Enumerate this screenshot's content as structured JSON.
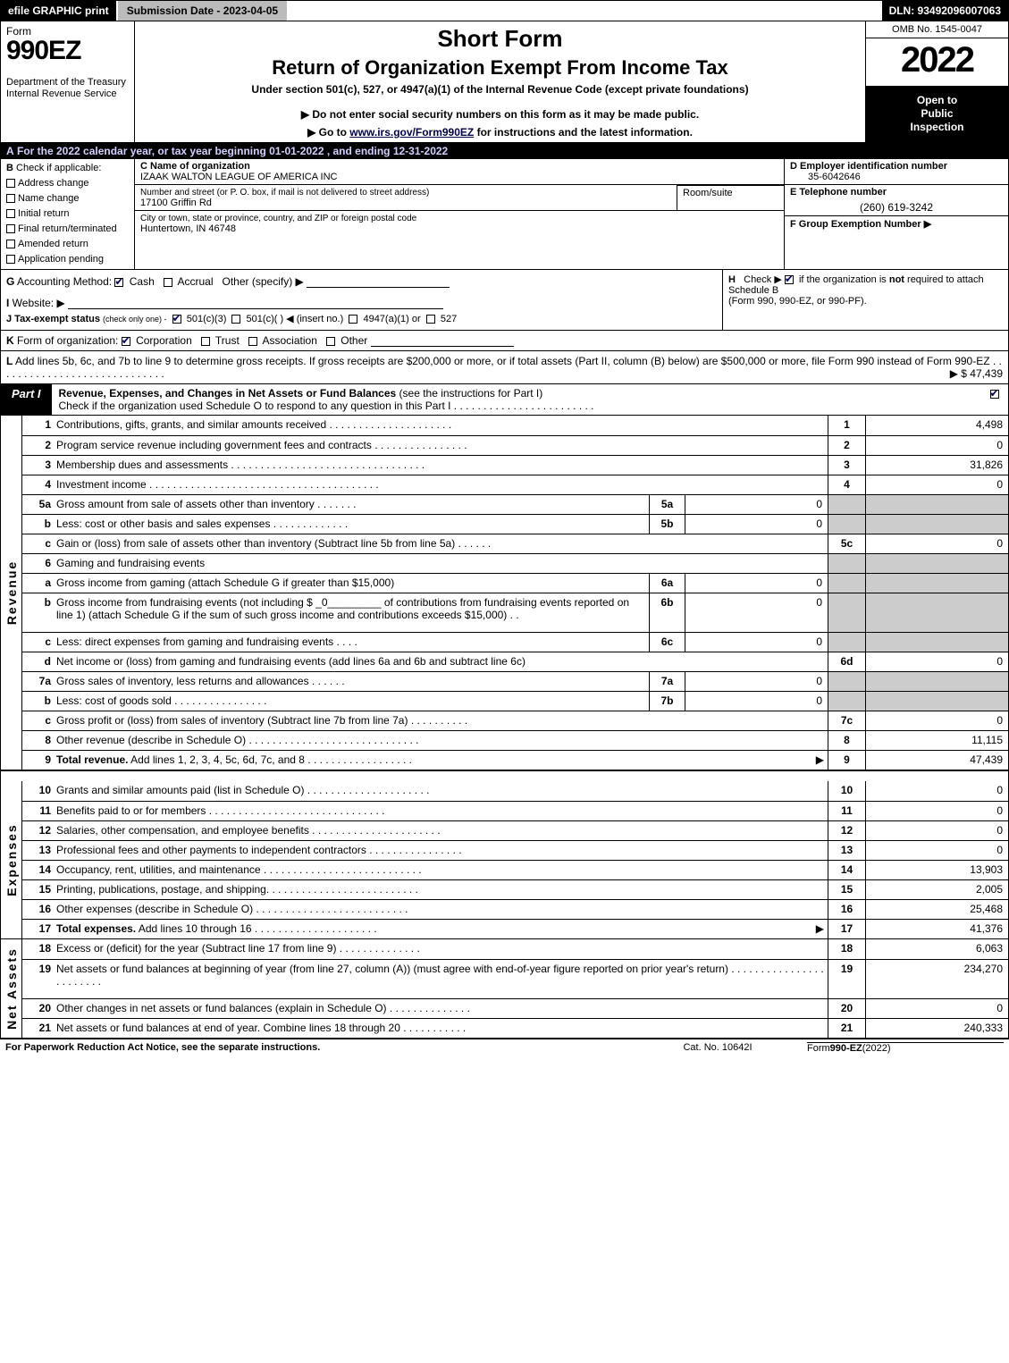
{
  "topbar": {
    "efile": "efile GRAPHIC print",
    "subdate": "Submission Date - 2023-04-05",
    "dln": "DLN: 93492096007063"
  },
  "header": {
    "formword": "Form",
    "formnum": "990EZ",
    "dept": "Department of the Treasury\nInternal Revenue Service",
    "short": "Short Form",
    "title": "Return of Organization Exempt From Income Tax",
    "sub1": "Under section 501(c), 527, or 4947(a)(1) of the Internal Revenue Code (except private foundations)",
    "sub2": "▶ Do not enter social security numbers on this form as it may be made public.",
    "sub3_pre": "▶ Go to ",
    "sub3_link": "www.irs.gov/Form990EZ",
    "sub3_post": " for instructions and the latest information.",
    "omb": "OMB No. 1545-0047",
    "year": "2022",
    "badge1": "Open to",
    "badge2": "Public",
    "badge3": "Inspection"
  },
  "lineA": {
    "prefix": "A",
    "text": "  For the 2022 calendar year, or tax year beginning 01-01-2022  , and ending 12-31-2022"
  },
  "boxB": {
    "hdr_b": "B",
    "hdr_txt": "  Check if applicable:",
    "items": [
      "Address change",
      "Name change",
      "Initial return",
      "Final return/terminated",
      "Amended return",
      "Application pending"
    ]
  },
  "boxC": {
    "lbl": "C Name of organization",
    "name": "IZAAK WALTON LEAGUE OF AMERICA INC",
    "street_lbl": "Number and street (or P. O. box, if mail is not delivered to street address)",
    "street": "17100 Griffin Rd",
    "room_lbl": "Room/suite",
    "city_lbl": "City or town, state or province, country, and ZIP or foreign postal code",
    "city": "Huntertown, IN  46748"
  },
  "boxD": {
    "lbl": "D Employer identification number",
    "val": "35-6042646"
  },
  "boxE": {
    "lbl": "E Telephone number",
    "val": "(260) 619-3242"
  },
  "boxF": {
    "lbl": "F Group Exemption Number   ▶"
  },
  "lineG": {
    "prefix": "G",
    "label": " Accounting Method:   ",
    "cash": "Cash",
    "accrual": "Accrual",
    "other": "Other (specify) ▶"
  },
  "lineH": {
    "prefix": "H",
    "text": "   Check ▶  ☑  if the organization is not required to attach Schedule B (Form 990, 990-EZ, or 990-PF).",
    "text_plain1": "Check ▶",
    "text_plain2": "if the organization is",
    "text_bold": "not",
    "text_plain3": "required to attach Schedule B",
    "text_plain4": "(Form 990, 990-EZ, or 990-PF)."
  },
  "lineI": {
    "prefix": "I",
    "label": " Website: ▶"
  },
  "lineJ": {
    "prefix": "J",
    "label": " Tax-exempt status",
    "sub": "(check only one) -",
    "o1": "501(c)(3)",
    "o2": "501(c)(  )",
    "o2b": "◀ (insert no.)",
    "o3": "4947(a)(1) or",
    "o4": "527"
  },
  "lineK": {
    "prefix": "K",
    "label": " Form of organization:   ",
    "o1": "Corporation",
    "o2": "Trust",
    "o3": "Association",
    "o4": "Other"
  },
  "lineL": {
    "prefix": "L",
    "text": " Add lines 5b, 6c, and 7b to line 9 to determine gross receipts. If gross receipts are $200,000 or more, or if total assets (Part II, column (B) below) are $500,000 or more, file Form 990 instead of Form 990-EZ",
    "dots": " . . . . . . . . . . . . . . . . . . . . . . . . . . . . .",
    "arrow": "▶",
    "amt": "$ 47,439"
  },
  "partI": {
    "tag": "Part I",
    "title": "Revenue, Expenses, and Changes in Net Assets or Fund Balances",
    "note": " (see the instructions for Part I)",
    "sub": "Check if the organization used Schedule O to respond to any question in this Part I",
    "sub_dots": " . . . . . . . . . . . . . . . . . . . . . . . ."
  },
  "revenue": {
    "side": "Revenue",
    "rows": [
      {
        "n": "1",
        "d": "Contributions, gifts, grants, and similar amounts received",
        "dots": " . . . . . . . . . . . . . . . . . . . . .",
        "ln": "1",
        "v": "4,498"
      },
      {
        "n": "2",
        "d": "Program service revenue including government fees and contracts",
        "dots": " . . . . . . . . . . . . . . . .",
        "ln": "2",
        "v": "0"
      },
      {
        "n": "3",
        "d": "Membership dues and assessments",
        "dots": " . . . . . . . . . . . . . . . . . . . . . . . . . . . . . . . . .",
        "ln": "3",
        "v": "31,826"
      },
      {
        "n": "4",
        "d": "Investment income",
        "dots": " . . . . . . . . . . . . . . . . . . . . . . . . . . . . . . . . . . . . . . .",
        "ln": "4",
        "v": "0"
      },
      {
        "n": "5a",
        "d": "Gross amount from sale of assets other than inventory",
        "dots": " . . . . . . .",
        "mini": "5a",
        "miniV": "0",
        "shade": true
      },
      {
        "n": "b",
        "d": "Less: cost or other basis and sales expenses",
        "dots": " . . . . . . . . . . . . .",
        "mini": "5b",
        "miniV": "0",
        "shade": true
      },
      {
        "n": "c",
        "d": "Gain or (loss) from sale of assets other than inventory (Subtract line 5b from line 5a)",
        "dots": " . . . . . .",
        "ln": "5c",
        "v": "0"
      },
      {
        "n": "6",
        "d": "Gaming and fundraising events",
        "noline": true,
        "shade": true
      },
      {
        "n": "a",
        "d": "Gross income from gaming (attach Schedule G if greater than $15,000)",
        "mini": "6a",
        "miniV": "0",
        "shade": true
      },
      {
        "n": "b",
        "d": "Gross income from fundraising events (not including $ _0_________ of contributions from fundraising events reported on line 1) (attach Schedule G if the sum of such gross income and contributions exceeds $15,000)",
        "dots": "  . .",
        "mini": "6b",
        "miniV": "0",
        "shade": true,
        "tall": true
      },
      {
        "n": "c",
        "d": "Less: direct expenses from gaming and fundraising events",
        "dots": " . . . .",
        "mini": "6c",
        "miniV": "0",
        "shade": true
      },
      {
        "n": "d",
        "d": "Net income or (loss) from gaming and fundraising events (add lines 6a and 6b and subtract line 6c)",
        "ln": "6d",
        "v": "0"
      },
      {
        "n": "7a",
        "d": "Gross sales of inventory, less returns and allowances",
        "dots": " . . . . . .",
        "mini": "7a",
        "miniV": "0",
        "shade": true
      },
      {
        "n": "b",
        "d": "Less: cost of goods sold",
        "dots": "       . . . . . . . . . . . . . . . .",
        "mini": "7b",
        "miniV": "0",
        "shade": true
      },
      {
        "n": "c",
        "d": "Gross profit or (loss) from sales of inventory (Subtract line 7b from line 7a)",
        "dots": " . . . . . . . . . .",
        "ln": "7c",
        "v": "0"
      },
      {
        "n": "8",
        "d": "Other revenue (describe in Schedule O)",
        "dots": " . . . . . . . . . . . . . . . . . . . . . . . . . . . . .",
        "ln": "8",
        "v": "11,115"
      },
      {
        "n": "9",
        "d_b": "Total revenue.",
        "d": " Add lines 1, 2, 3, 4, 5c, 6d, 7c, and 8",
        "dots": "  . . . . . . . . . . . . . . . . . .",
        "arrow": true,
        "ln": "9",
        "v": "47,439"
      }
    ]
  },
  "expenses": {
    "side": "Expenses",
    "rows": [
      {
        "n": "10",
        "d": "Grants and similar amounts paid (list in Schedule O)",
        "dots": " . . . . . . . . . . . . . . . . . . . . .",
        "ln": "10",
        "v": "0"
      },
      {
        "n": "11",
        "d": "Benefits paid to or for members",
        "dots": "     . . . . . . . . . . . . . . . . . . . . . . . . . . . . . .",
        "ln": "11",
        "v": "0"
      },
      {
        "n": "12",
        "d": "Salaries, other compensation, and employee benefits",
        "dots": " . . . . . . . . . . . . . . . . . . . . . .",
        "ln": "12",
        "v": "0"
      },
      {
        "n": "13",
        "d": "Professional fees and other payments to independent contractors",
        "dots": " . . . . . . . . . . . . . . . .",
        "ln": "13",
        "v": "0"
      },
      {
        "n": "14",
        "d": "Occupancy, rent, utilities, and maintenance",
        "dots": " . . . . . . . . . . . . . . . . . . . . . . . . . . .",
        "ln": "14",
        "v": "13,903"
      },
      {
        "n": "15",
        "d": "Printing, publications, postage, and shipping.",
        "dots": " . . . . . . . . . . . . . . . . . . . . . . . . .",
        "ln": "15",
        "v": "2,005"
      },
      {
        "n": "16",
        "d": "Other expenses (describe in Schedule O)",
        "dots": "    . . . . . . . . . . . . . . . . . . . . . . . . . .",
        "ln": "16",
        "v": "25,468"
      },
      {
        "n": "17",
        "d_b": "Total expenses.",
        "d": " Add lines 10 through 16",
        "dots": "     . . . . . . . . . . . . . . . . . . . . .",
        "arrow": true,
        "ln": "17",
        "v": "41,376"
      }
    ]
  },
  "netassets": {
    "side": "Net Assets",
    "rows": [
      {
        "n": "18",
        "d": "Excess or (deficit) for the year (Subtract line 17 from line 9)",
        "dots": "      . . . . . . . . . . . . . .",
        "ln": "18",
        "v": "6,063"
      },
      {
        "n": "19",
        "d": "Net assets or fund balances at beginning of year (from line 27, column (A)) (must agree with end-of-year figure reported on prior year's return)",
        "dots": " . . . . . . . . . . . . . . . . . . . . . . . .",
        "ln": "19",
        "v": "234,270",
        "tall": true,
        "shadetop": true
      },
      {
        "n": "20",
        "d": "Other changes in net assets or fund balances (explain in Schedule O)",
        "dots": " . . . . . . . . . . . . . .",
        "ln": "20",
        "v": "0"
      },
      {
        "n": "21",
        "d": "Net assets or fund balances at end of year. Combine lines 18 through 20",
        "dots": " . . . . . . . . . . .",
        "ln": "21",
        "v": "240,333"
      }
    ]
  },
  "footer": {
    "l": "For Paperwork Reduction Act Notice, see the separate instructions.",
    "m": "Cat. No. 10642I",
    "r_pre": "Form ",
    "r_b": "990-EZ",
    "r_post": " (2022)"
  }
}
